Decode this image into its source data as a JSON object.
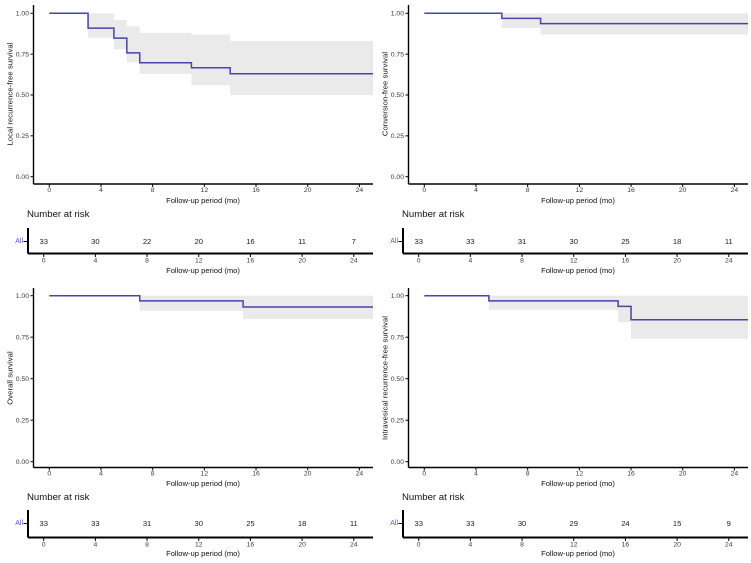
{
  "figure": {
    "description": "Kaplan-Meier survival curves with 95% confidence bands and number-at-risk tables",
    "colors": {
      "curve": "#4844A9",
      "confidence_band": "#EAEAEA",
      "axis": "#000000",
      "tick_label": "#3A3A3A",
      "risk_group_label": "#5B54C0",
      "background": "#FFFFFF"
    }
  },
  "chart_data": [
    {
      "type": "line",
      "subtype": "kaplan-meier-step",
      "ylabel": "Local recurrence-free survival",
      "xlabel": "Follow-up period (mo)",
      "xlim": [
        0,
        25
      ],
      "ylim": [
        0,
        1
      ],
      "grid": false,
      "legend": false,
      "xticks": [
        0,
        4,
        8,
        12,
        16,
        20,
        24
      ],
      "ytick_values": [
        0,
        0.25,
        0.5,
        0.75,
        1
      ],
      "ytick_labels": [
        "0.00",
        "0.25",
        "0.50",
        "0.75",
        "1.00"
      ],
      "series": [
        {
          "name": "All",
          "step_times": [
            0,
            3,
            5,
            6,
            7,
            11,
            14
          ],
          "step_survival": [
            1.0,
            0.909,
            0.848,
            0.758,
            0.697,
            0.667,
            0.63
          ]
        }
      ],
      "confidence_band": {
        "times": [
          3,
          5,
          6,
          7,
          11,
          14
        ],
        "upper": [
          1.0,
          0.96,
          0.92,
          0.88,
          0.87,
          0.83
        ],
        "lower": [
          0.85,
          0.78,
          0.7,
          0.63,
          0.56,
          0.5
        ]
      },
      "risk_table": {
        "heading": "Number at risk",
        "group": "All",
        "times": [
          0,
          4,
          8,
          12,
          16,
          20,
          24
        ],
        "counts": [
          33,
          30,
          22,
          20,
          16,
          11,
          7
        ]
      }
    },
    {
      "type": "line",
      "subtype": "kaplan-meier-step",
      "ylabel": "Conversion-free survival",
      "xlabel": "Follow-up period (mo)",
      "xlim": [
        0,
        25
      ],
      "ylim": [
        0,
        1
      ],
      "grid": false,
      "legend": false,
      "xticks": [
        0,
        4,
        8,
        12,
        16,
        20,
        24
      ],
      "ytick_values": [
        0,
        0.25,
        0.5,
        0.75,
        1
      ],
      "ytick_labels": [
        "0.00",
        "0.25",
        "0.50",
        "0.75",
        "1.00"
      ],
      "series": [
        {
          "name": "All",
          "step_times": [
            0,
            6,
            9
          ],
          "step_survival": [
            1.0,
            0.969,
            0.937
          ]
        }
      ],
      "confidence_band": {
        "times": [
          6,
          9
        ],
        "upper": [
          1.0,
          1.0
        ],
        "lower": [
          0.91,
          0.87
        ]
      },
      "risk_table": {
        "heading": "Number at risk",
        "group": "All",
        "times": [
          0,
          4,
          8,
          12,
          16,
          20,
          24
        ],
        "counts": [
          33,
          33,
          31,
          30,
          25,
          18,
          11
        ]
      }
    },
    {
      "type": "line",
      "subtype": "kaplan-meier-step",
      "ylabel": "Overall survival",
      "xlabel": "Follow-up period (mo)",
      "xlim": [
        0,
        25
      ],
      "ylim": [
        0,
        1
      ],
      "grid": false,
      "legend": false,
      "xticks": [
        0,
        4,
        8,
        12,
        16,
        20,
        24
      ],
      "ytick_values": [
        0,
        0.25,
        0.5,
        0.75,
        1
      ],
      "ytick_labels": [
        "0.00",
        "0.25",
        "0.50",
        "0.75",
        "1.00"
      ],
      "series": [
        {
          "name": "All",
          "step_times": [
            0,
            7,
            15
          ],
          "step_survival": [
            1.0,
            0.969,
            0.932
          ]
        }
      ],
      "confidence_band": {
        "times": [
          7,
          15
        ],
        "upper": [
          1.0,
          1.0
        ],
        "lower": [
          0.91,
          0.86
        ]
      },
      "risk_table": {
        "heading": "Number at risk",
        "group": "All",
        "times": [
          0,
          4,
          8,
          12,
          16,
          20,
          24
        ],
        "counts": [
          33,
          33,
          31,
          30,
          25,
          18,
          11
        ]
      }
    },
    {
      "type": "line",
      "subtype": "kaplan-meier-step",
      "ylabel": "Intravesical recurrence-free survival",
      "xlabel": "Follow-up period (mo)",
      "xlim": [
        0,
        25
      ],
      "ylim": [
        0,
        1
      ],
      "grid": false,
      "legend": false,
      "xticks": [
        0,
        4,
        8,
        12,
        16,
        20,
        24
      ],
      "ytick_values": [
        0,
        0.25,
        0.5,
        0.75,
        1
      ],
      "ytick_labels": [
        "0.00",
        "0.25",
        "0.50",
        "0.75",
        "1.00"
      ],
      "series": [
        {
          "name": "All",
          "step_times": [
            0,
            5,
            15,
            16
          ],
          "step_survival": [
            1.0,
            0.969,
            0.936,
            0.855
          ]
        }
      ],
      "confidence_band": {
        "times": [
          5,
          15,
          16
        ],
        "upper": [
          1.0,
          1.0,
          1.0
        ],
        "lower": [
          0.915,
          0.84,
          0.74
        ]
      },
      "risk_table": {
        "heading": "Number at risk",
        "group": "All",
        "times": [
          0,
          4,
          8,
          12,
          16,
          20,
          24
        ],
        "counts": [
          33,
          33,
          30,
          29,
          24,
          15,
          9
        ]
      }
    }
  ]
}
